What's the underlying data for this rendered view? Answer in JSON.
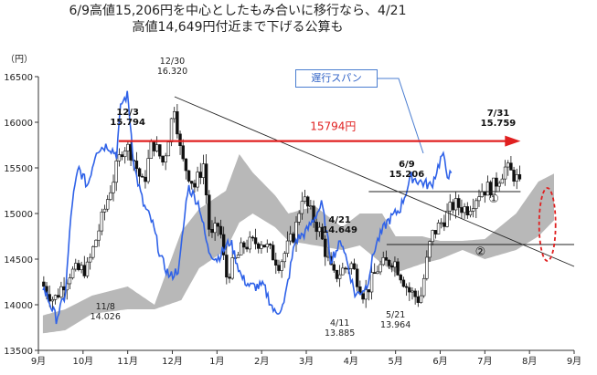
{
  "title": {
    "line1": "6/9高値15,206円を中心としたもみ合いに移行なら、4/21",
    "line2": "高値14,649円付近まで下げる公算も"
  },
  "chart_data": {
    "type": "candlestick",
    "ylabel": "（円）",
    "ylim": [
      13500,
      16500
    ],
    "yticks": [
      13500,
      14000,
      14500,
      15000,
      15500,
      16000,
      16500
    ],
    "xticks": [
      "9月",
      "10月",
      "11月",
      "12月",
      "1月",
      "2月",
      "3月",
      "4月",
      "5月",
      "6月",
      "7月",
      "8月",
      "9月"
    ],
    "callout": "遅行スパン",
    "target_label": "15794円",
    "circle_labels": [
      "①",
      "②"
    ],
    "annotations": [
      {
        "date": "11/8",
        "value": "14.026"
      },
      {
        "date": "12/3",
        "value": "15.794"
      },
      {
        "date": "12/30",
        "value": "16.320"
      },
      {
        "date": "4/11",
        "value": "13.885"
      },
      {
        "date": "4/21",
        "value": "14.649"
      },
      {
        "date": "5/21",
        "value": "13.964"
      },
      {
        "date": "6/9",
        "value": "15.206"
      },
      {
        "date": "7/31",
        "value": "15.759"
      }
    ],
    "colors": {
      "candle": "#111111",
      "cloud": "#b8b8b8",
      "lagging_span": "#2f62e8",
      "target_arrow": "#e02020",
      "trendline": "#222222",
      "ellipse": "#e02020"
    }
  }
}
